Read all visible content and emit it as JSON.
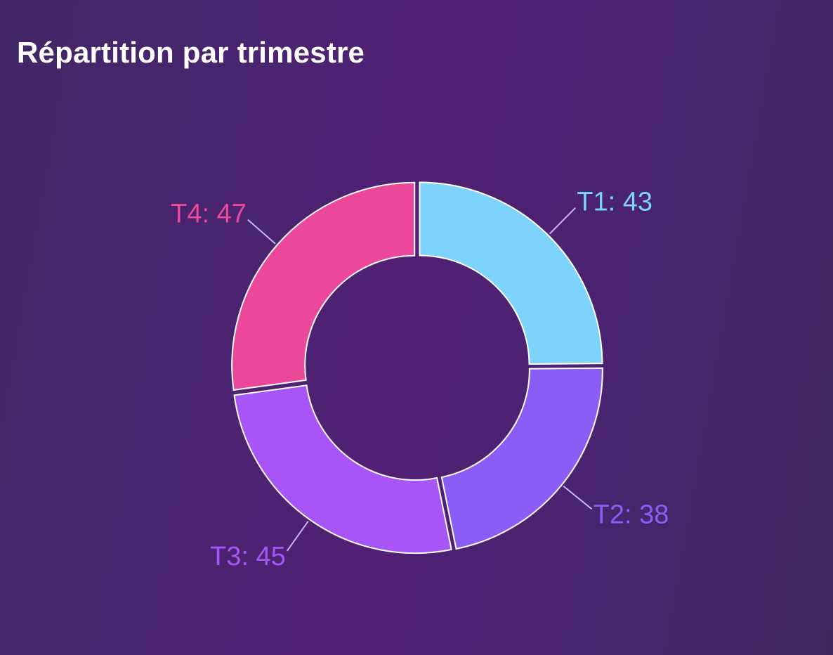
{
  "chart_data": {
    "type": "pie",
    "title": "Répartition par trimestre",
    "categories": [
      "T1",
      "T2",
      "T3",
      "T4"
    ],
    "values": [
      43,
      38,
      45,
      47
    ],
    "colors": [
      "#7dd3fc",
      "#8b5cf6",
      "#a855f7",
      "#ec4899"
    ],
    "labels": [
      "T1: 43",
      "T2: 38",
      "T3: 45",
      "T4: 47"
    ],
    "donut": true,
    "legend": "none",
    "grid": false
  }
}
